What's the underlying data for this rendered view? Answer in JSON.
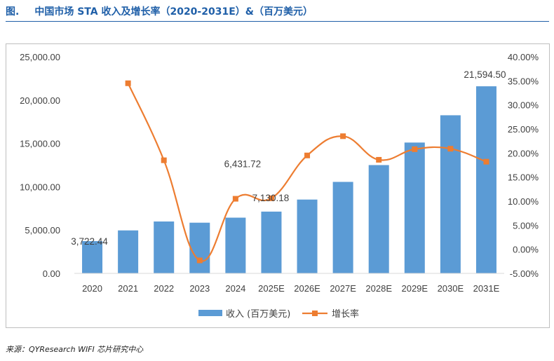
{
  "header": {
    "figure_label": "图.",
    "title": "中国市场 STA 收入及增长率（2020-2031E）&（百万美元）"
  },
  "source_note": "来源：QYResearch WIFI 芯片研究中心",
  "colors": {
    "bar": "#5b9bd5",
    "line": "#ed7d31",
    "title": "#1f5fa8"
  },
  "chart_data": {
    "type": "bar",
    "categories": [
      "2020",
      "2021",
      "2022",
      "2023",
      "2024",
      "2025E",
      "2026E",
      "2027E",
      "2028E",
      "2029E",
      "2030E",
      "2031E"
    ],
    "series": [
      {
        "name": "收入 (百万美元)",
        "type": "bar",
        "axis": "left",
        "values": [
          3722.44,
          4960,
          5990,
          5850,
          6431.72,
          7130.18,
          8520,
          10560,
          12500,
          15100,
          18250,
          21594.5
        ]
      },
      {
        "name": "增长率",
        "type": "line",
        "axis": "right",
        "values": [
          null,
          34.5,
          18.5,
          -2.3,
          10.5,
          10.6,
          19.5,
          23.5,
          18.6,
          20.8,
          20.9,
          18.2
        ]
      }
    ],
    "y_left": {
      "ylim": [
        0,
        25000
      ],
      "ticks": [
        "0.00",
        "5,000.00",
        "10,000.00",
        "15,000.00",
        "20,000.00",
        "25,000.00"
      ]
    },
    "y_right": {
      "ylim": [
        -5,
        40
      ],
      "ticks": [
        "-5.00%",
        "0.00%",
        "5.00%",
        "10.00%",
        "15.00%",
        "20.00%",
        "25.00%",
        "30.00%",
        "35.00%",
        "40.00%"
      ]
    },
    "data_labels": [
      {
        "index": 0,
        "text": "3,722.44"
      },
      {
        "index": 4,
        "text": "6,431.72"
      },
      {
        "index": 5,
        "text": "7,130.18"
      },
      {
        "index": 11,
        "text": "21,594.50"
      }
    ],
    "legend": {
      "position": "bottom",
      "entries": [
        "收入 (百万美元)",
        "增长率"
      ]
    },
    "grid": false
  }
}
